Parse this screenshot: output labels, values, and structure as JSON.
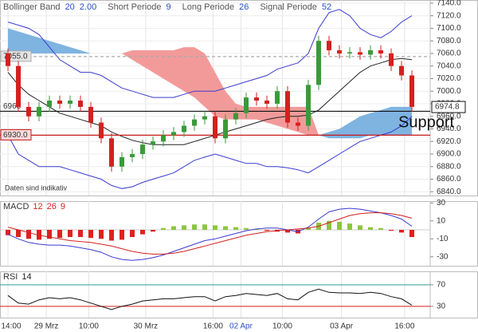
{
  "chart_data": [
    {
      "type": "candlestick",
      "header": [
        {
          "label": "Bollinger Band",
          "params": [
            20,
            "2.00"
          ]
        },
        {
          "label": "Short Periode",
          "params": [
            9
          ]
        },
        {
          "label": "Long Periode",
          "params": [
            26
          ]
        },
        {
          "label": "Signal Periode",
          "params": [
            52
          ]
        }
      ],
      "param_color": "#2a50c8",
      "xlim": [
        -0.77,
        40.77
      ],
      "ylim": [
        6834,
        7145
      ],
      "yticks": [
        {
          "value": 7140,
          "label": "7140.0"
        },
        {
          "value": 7120,
          "label": "7120.0"
        },
        {
          "value": 7100,
          "label": "7100.0"
        },
        {
          "value": 7080,
          "label": "7080.0"
        },
        {
          "value": 7060,
          "label": "7060.0"
        },
        {
          "value": 7040,
          "label": "7040.0"
        },
        {
          "value": 7020,
          "label": "7020.0"
        },
        {
          "value": 7000,
          "label": "7000.0"
        },
        {
          "value": 6980,
          "label": "6980.0"
        },
        {
          "value": 6960,
          "label": "6960.0"
        },
        {
          "value": 6940,
          "label": "6940.0"
        },
        {
          "value": 6920,
          "label": "6920.0"
        },
        {
          "value": 6900,
          "label": "6900.0"
        },
        {
          "value": 6880,
          "label": "6880.0"
        },
        {
          "value": 6860,
          "label": "6860.0"
        },
        {
          "value": 6840,
          "label": "6840.0"
        }
      ],
      "open": [
        7060,
        7040,
        6975,
        6960,
        6975,
        6985,
        6980,
        6985,
        6975,
        6950,
        6925,
        6880,
        6895,
        6900,
        6915,
        6920,
        6930,
        6935,
        6945,
        6955,
        6960,
        6925,
        6955,
        6965,
        6990,
        6985,
        6980,
        7000,
        6950,
        6945,
        7010,
        7080,
        7065,
        7060,
        7062,
        7058,
        7065,
        7060,
        7040,
        7025
      ],
      "high": [
        7068,
        7048,
        6983,
        6983,
        6993,
        6993,
        6993,
        6993,
        6983,
        6958,
        6933,
        6903,
        6908,
        6923,
        6928,
        6938,
        6943,
        6953,
        6963,
        6968,
        6968,
        6963,
        6973,
        6998,
        6998,
        6993,
        7008,
        7008,
        6958,
        7018,
        7088,
        7088,
        7073,
        7070,
        7070,
        7073,
        7073,
        7068,
        7048,
        7033
      ],
      "low": [
        7032,
        6967,
        6952,
        6952,
        6967,
        6972,
        6972,
        6967,
        6942,
        6917,
        6872,
        6872,
        6887,
        6892,
        6907,
        6912,
        6922,
        6927,
        6937,
        6947,
        6917,
        6917,
        6947,
        6957,
        6977,
        6972,
        6972,
        6942,
        6937,
        6937,
        7002,
        7057,
        7052,
        7052,
        7050,
        7050,
        7052,
        7032,
        7017,
        6967
      ],
      "close": [
        7040,
        6975,
        6960,
        6975,
        6985,
        6980,
        6985,
        6975,
        6950,
        6925,
        6880,
        6895,
        6900,
        6915,
        6920,
        6930,
        6935,
        6945,
        6955,
        6960,
        6925,
        6955,
        6965,
        6990,
        6985,
        6980,
        7000,
        6950,
        6945,
        7010,
        7080,
        7065,
        7060,
        7062,
        7058,
        7065,
        7060,
        7040,
        7025,
        6975
      ],
      "up_color": "#3a9a3a",
      "down_color": "#d42020",
      "bands": {
        "upper": [
          7110,
          7105,
          7100,
          7090,
          7070,
          7050,
          7040,
          7030,
          7030,
          7025,
          7015,
          7005,
          7000,
          6995,
          6990,
          6990,
          6990,
          6995,
          7000,
          7000,
          7000,
          7005,
          7010,
          7015,
          7020,
          7025,
          7035,
          7040,
          7045,
          7060,
          7100,
          7125,
          7130,
          7120,
          7100,
          7090,
          7085,
          7095,
          7110,
          7120
        ],
        "middle": [
          7030,
          7010,
          6995,
          6985,
          6975,
          6965,
          6960,
          6955,
          6950,
          6945,
          6935,
          6928,
          6922,
          6918,
          6915,
          6915,
          6915,
          6915,
          6920,
          6925,
          6930,
          6935,
          6940,
          6945,
          6950,
          6955,
          6958,
          6960,
          6960,
          6962,
          6970,
          6985,
          7000,
          7015,
          7030,
          7040,
          7045,
          7050,
          7052,
          7050
        ],
        "lower": [
          6930,
          6900,
          6890,
          6880,
          6880,
          6880,
          6875,
          6870,
          6865,
          6860,
          6850,
          6845,
          6848,
          6855,
          6860,
          6865,
          6870,
          6880,
          6890,
          6895,
          6900,
          6895,
          6890,
          6885,
          6885,
          6880,
          6880,
          6878,
          6875,
          6870,
          6880,
          6890,
          6900,
          6910,
          6920,
          6925,
          6930,
          6935,
          6945,
          6960
        ],
        "band_color": "#3a3ad0",
        "middle_color": "#222"
      },
      "cloud": {
        "span_a": [
          7100,
          7095,
          7090,
          7085,
          7080,
          7075,
          7070,
          7065,
          7060,
          7060,
          7060,
          7060,
          7050,
          7040,
          7030,
          7020,
          7010,
          7000,
          6990,
          6975,
          6960,
          6955,
          6955,
          6955,
          6955,
          6950,
          6945,
          6940,
          6935,
          6930,
          6930,
          6935,
          6940,
          6950,
          6960,
          6965,
          6970,
          6975,
          6975,
          6975
        ],
        "span_b": [
          7060,
          7060,
          7060,
          7060,
          7060,
          7060,
          7060,
          7060,
          7060,
          7060,
          7060,
          7060,
          7065,
          7065,
          7065,
          7065,
          7065,
          7070,
          7070,
          7060,
          7030,
          7000,
          6980,
          6975,
          6975,
          6975,
          6975,
          6975,
          6975,
          6975,
          6930,
          6925,
          6925,
          6925,
          6925,
          6930,
          6930,
          6930,
          6930,
          6930
        ],
        "up_color": "#7fb3e0",
        "down_color": "#f29a9a"
      },
      "levels": [
        {
          "value": 7055,
          "label": "7055.0",
          "color": "#aaa",
          "dashed": true
        },
        {
          "value": 6968,
          "color": "#111"
        },
        {
          "value": 6930,
          "label": "6930.0",
          "color": "#c81818"
        }
      ],
      "last_price": {
        "value": 6974.8,
        "label": "6974.8"
      },
      "annotation": "Support",
      "note": "Daten sind indikativ"
    },
    {
      "type": "macd",
      "title": "MACD",
      "params": [
        12,
        26,
        9
      ],
      "param_color": "#d42020",
      "xlim": [
        -0.77,
        40.77
      ],
      "ylim": [
        -40,
        32
      ],
      "yticks": [
        30,
        10,
        -10,
        -30
      ],
      "histogram": [
        -6,
        -8,
        -10,
        -11,
        -10,
        -9,
        -8,
        -8,
        -9,
        -10,
        -12,
        -11,
        -8,
        -5,
        -2,
        2,
        4,
        5,
        6,
        6,
        5,
        4,
        3,
        2,
        1,
        -1,
        -2,
        -3,
        -4,
        2,
        8,
        10,
        9,
        7,
        5,
        3,
        2,
        -1,
        -3,
        -8
      ],
      "pos_color": "#8cc63f",
      "neg_color": "#e02020",
      "macd": [
        -5,
        -10,
        -14,
        -16,
        -17,
        -17,
        -18,
        -20,
        -22,
        -25,
        -30,
        -33,
        -34,
        -33,
        -31,
        -28,
        -24,
        -20,
        -16,
        -12,
        -10,
        -7,
        -4,
        -1,
        1,
        2,
        2,
        0,
        -2,
        3,
        12,
        20,
        23,
        24,
        23,
        21,
        19,
        16,
        12,
        4
      ],
      "signal": [
        3,
        0,
        -3,
        -6,
        -8,
        -10,
        -12,
        -13,
        -14,
        -16,
        -18,
        -21,
        -24,
        -26,
        -27,
        -27,
        -26,
        -24,
        -21,
        -18,
        -15,
        -12,
        -9,
        -6,
        -4,
        -2,
        -1,
        0,
        1,
        2,
        4,
        8,
        12,
        16,
        18,
        19,
        19,
        18,
        16,
        13
      ],
      "macd_color": "#3a3ad0",
      "signal_color": "#d42020"
    },
    {
      "type": "line",
      "title": "RSI",
      "params": [
        14
      ],
      "param_color": "#222",
      "xlim": [
        -0.77,
        40.77
      ],
      "ylim": [
        9,
        95
      ],
      "yticks": [
        70,
        30
      ],
      "level_colors": [
        "#2a9d8f",
        "#d42020"
      ],
      "values": [
        50,
        36,
        34,
        42,
        46,
        44,
        46,
        42,
        36,
        30,
        24,
        30,
        34,
        40,
        42,
        44,
        44,
        46,
        48,
        48,
        40,
        48,
        50,
        54,
        52,
        50,
        54,
        44,
        42,
        56,
        62,
        56,
        55,
        55,
        54,
        56,
        54,
        48,
        44,
        32
      ],
      "color": "#111",
      "xticks": [
        {
          "value": 0,
          "label": "14:00"
        },
        {
          "value": 3.7,
          "label": "29 Mrz"
        },
        {
          "value": 7.8,
          "label": "10:00"
        },
        {
          "value": 13.3,
          "label": "30 Mrz"
        },
        {
          "value": 19.8,
          "label": "16:00"
        },
        {
          "value": 22.5,
          "label": "02 Apr"
        },
        {
          "value": 26.5,
          "label": "10:00"
        },
        {
          "value": 32.2,
          "label": "03 Apr"
        },
        {
          "value": 38.3,
          "label": "16:00"
        }
      ],
      "xtick_colors": [
        "#333",
        "#333",
        "#333",
        "#333",
        "#333",
        "#2a50c8",
        "#333",
        "#333",
        "#333"
      ]
    }
  ]
}
